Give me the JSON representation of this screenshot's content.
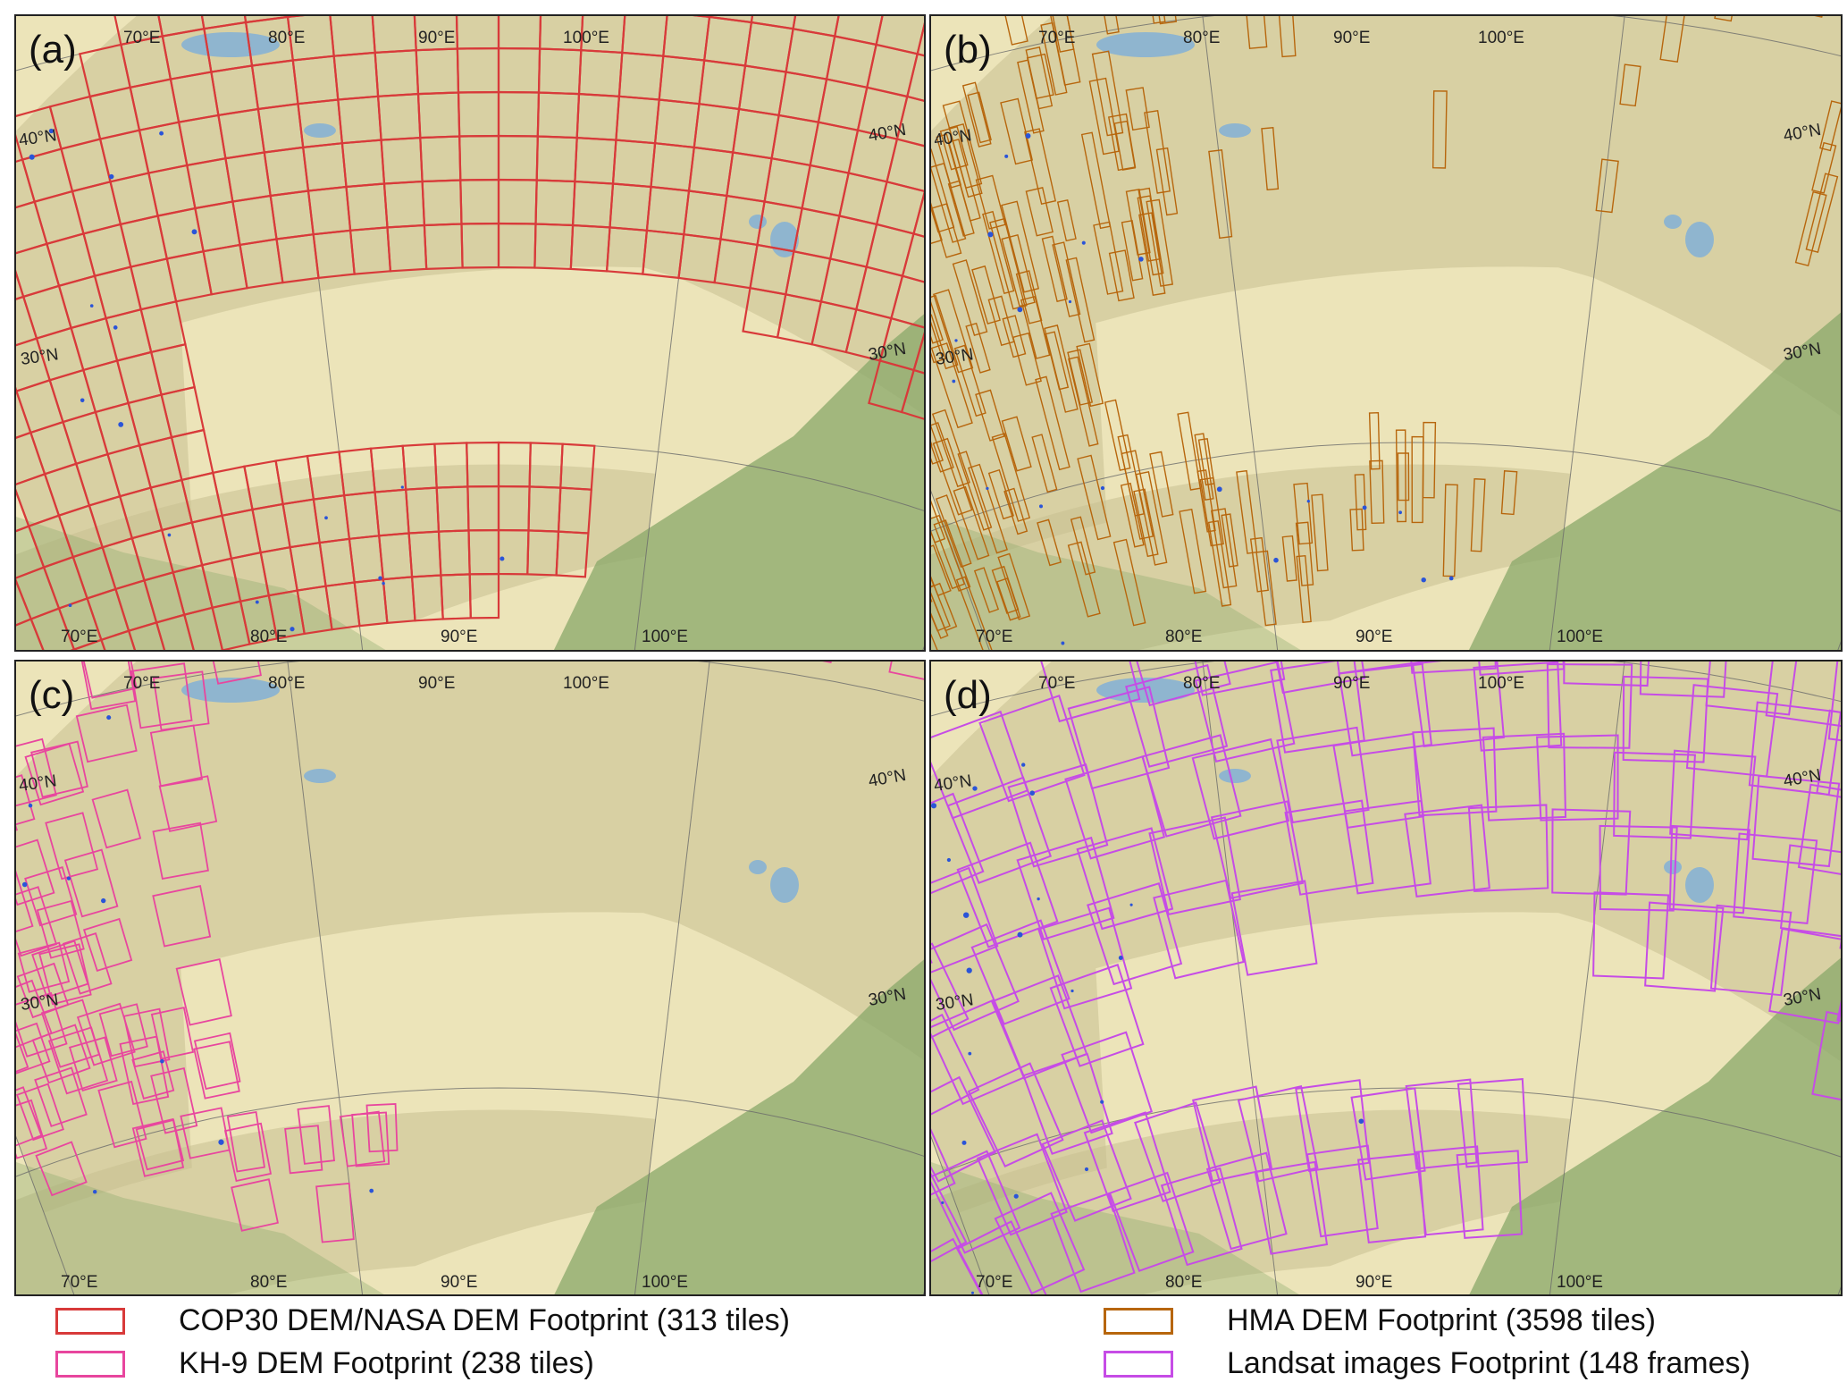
{
  "colors": {
    "cop30": "#d83a3a",
    "hma": "#b7660d",
    "kh9": "#e8469e",
    "landsat": "#c64ce6",
    "glacier": "#2a54d8",
    "lake": "#8fb5cf",
    "plain": "#ece4b9",
    "mountain": "#c9bf92",
    "forest": "#8aa86a"
  },
  "axes": {
    "top_lon_labels": [
      "70°E",
      "80°E",
      "90°E",
      "100°E"
    ],
    "bottom_lon_labels": [
      "70°E",
      "80°E",
      "90°E",
      "100°E"
    ],
    "lat_labels": [
      "40°N",
      "30°N"
    ]
  },
  "panels": [
    {
      "letter": "(a)",
      "dataset": "cop30",
      "icon": "square-grid-icon"
    },
    {
      "letter": "(b)",
      "dataset": "hma",
      "icon": "strip-footprint-icon"
    },
    {
      "letter": "(c)",
      "dataset": "kh9",
      "icon": "tile-footprint-icon"
    },
    {
      "letter": "(d)",
      "dataset": "landsat",
      "icon": "frame-footprint-icon"
    }
  ],
  "legend": [
    {
      "key": "cop30",
      "label": "COP30 DEM/NASA DEM Footprint (313 tiles)"
    },
    {
      "key": "kh9",
      "label": "KH-9 DEM Footprint (238 tiles)"
    },
    {
      "key": "hma",
      "label": "HMA DEM Footprint (3598 tiles)"
    },
    {
      "key": "landsat",
      "label": "Landsat images Footprint (148 frames)"
    }
  ]
}
